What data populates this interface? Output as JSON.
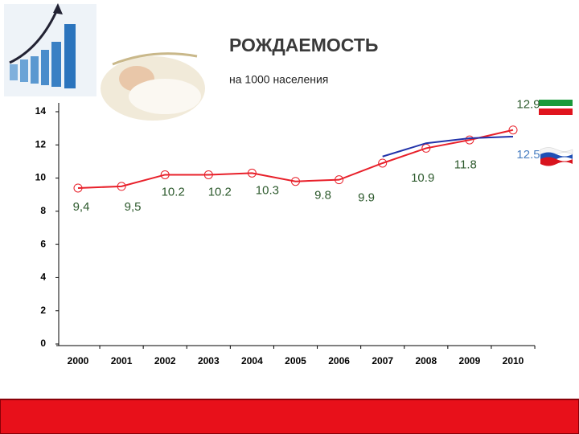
{
  "chart_data": {
    "type": "line",
    "title": "РОЖДАЕМОСТЬ",
    "subtitle": "на 1000 населения",
    "categories": [
      "2000",
      "2001",
      "2002",
      "2003",
      "2004",
      "2005",
      "2006",
      "2007",
      "2008",
      "2009",
      "2010"
    ],
    "series": [
      {
        "color": "#e8202a",
        "values": [
          9.4,
          9.5,
          10.2,
          10.2,
          10.3,
          9.8,
          9.9,
          10.9,
          11.8,
          12.3,
          12.9
        ],
        "value_labels": [
          "9,4",
          "9,5",
          "10.2",
          "10.2",
          "10.3",
          "9.8",
          "9.9",
          "10.9",
          "11.8",
          null,
          "12.9"
        ]
      },
      {
        "color": "#2233aa",
        "values": [
          null,
          null,
          null,
          null,
          null,
          null,
          null,
          11.3,
          12.1,
          12.4,
          12.5
        ],
        "value_labels": [
          null,
          null,
          null,
          null,
          null,
          null,
          null,
          null,
          null,
          null,
          "12.5"
        ]
      }
    ],
    "ylim": [
      0,
      14
    ],
    "yticks": [
      0,
      2,
      4,
      6,
      8,
      10,
      12,
      14
    ],
    "grid": false
  }
}
